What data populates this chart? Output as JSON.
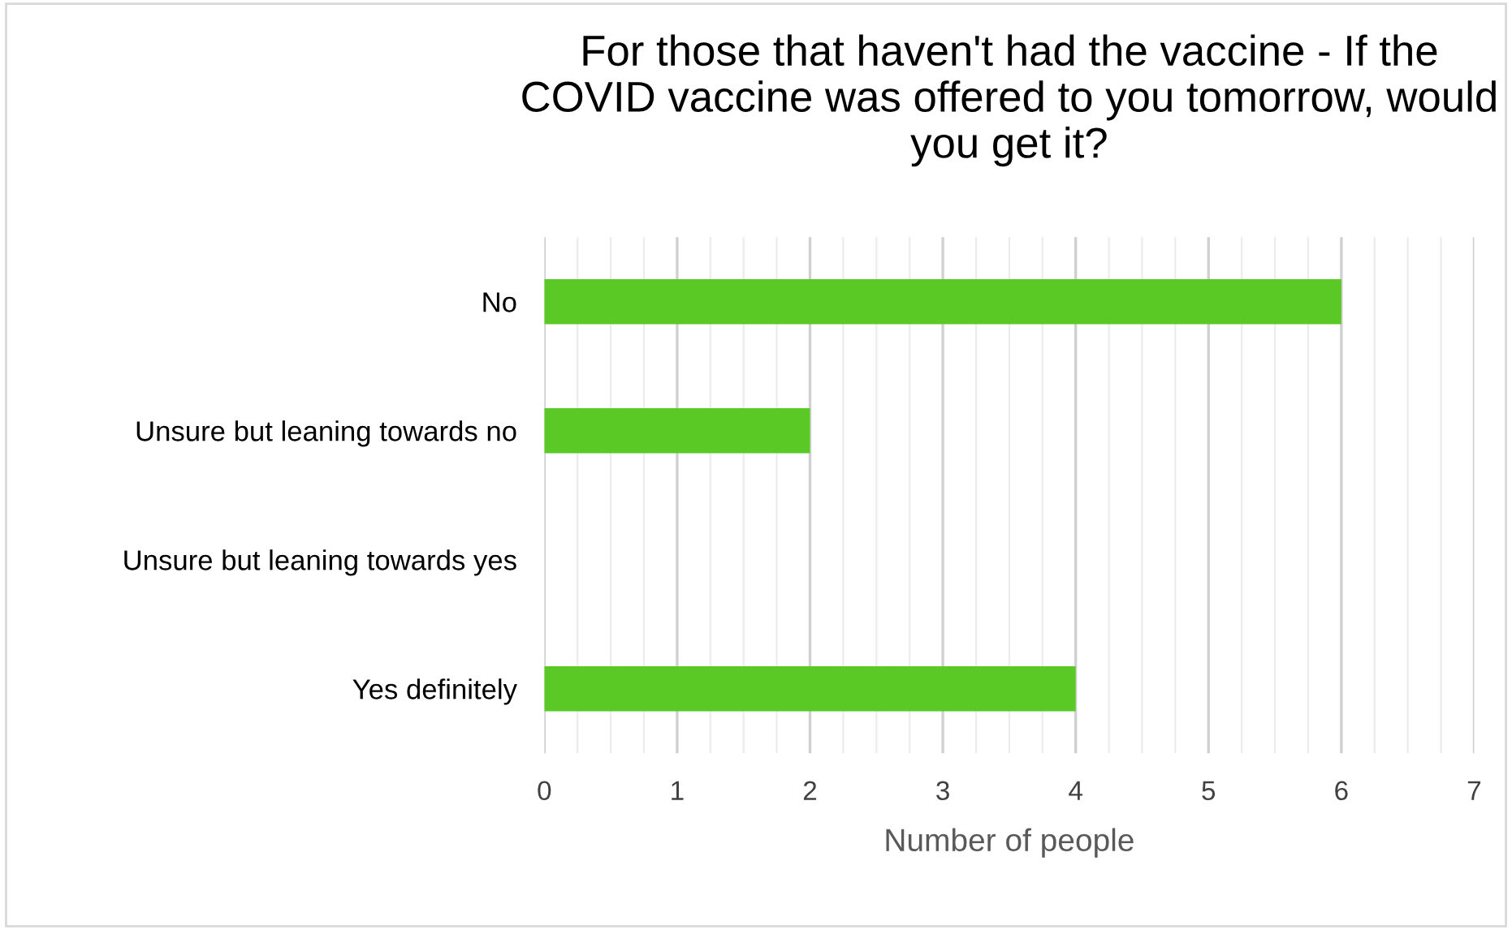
{
  "chart_data": {
    "type": "bar",
    "orientation": "horizontal",
    "title": "For those that haven't had the vaccine - If the COVID vaccine was offered to you tomorrow, would you get it?",
    "xlabel": "Number of people",
    "categories": [
      "No",
      "Unsure but leaning towards no",
      "Unsure but leaning towards yes",
      "Yes definitely"
    ],
    "values": [
      6,
      2,
      0,
      4
    ],
    "color": "#5ac926",
    "xlim": [
      0,
      7
    ],
    "xticks": [
      0,
      {
        "value": 0.25,
        "label": null
      },
      {
        "value": 0.5,
        "label": null
      },
      {
        "value": 0.75,
        "label": null
      },
      1,
      {
        "value": 1.25,
        "label": null
      },
      {
        "value": 1.5,
        "label": null
      },
      {
        "value": 1.75,
        "label": null
      },
      2,
      {
        "value": 2.25,
        "label": null
      },
      {
        "value": 2.5,
        "label": null
      },
      {
        "value": 2.75,
        "label": null
      },
      3,
      {
        "value": 3.25,
        "label": null
      },
      {
        "value": 3.5,
        "label": null
      },
      {
        "value": 3.75,
        "label": null
      },
      4,
      {
        "value": 4.25,
        "label": null
      },
      {
        "value": 4.5,
        "label": null
      },
      {
        "value": 4.75,
        "label": null
      },
      5,
      {
        "value": 5.25,
        "label": null
      },
      {
        "value": 5.5,
        "label": null
      },
      {
        "value": 5.75,
        "label": null
      },
      6,
      {
        "value": 6.25,
        "label": null
      },
      {
        "value": 6.5,
        "label": null
      },
      {
        "value": 6.75,
        "label": null
      },
      7
    ],
    "grid": "x",
    "legend": false
  }
}
